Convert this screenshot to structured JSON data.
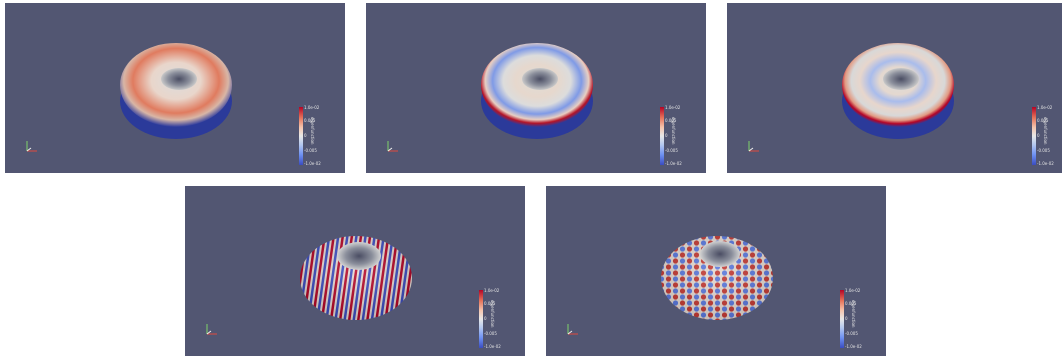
{
  "views": [
    {
      "mode": "low",
      "colorbar": {
        "ticks": [
          "1.0e-02",
          "0.005",
          "0",
          "-0.005",
          "-1.0e-02"
        ],
        "title": "eigenfunction"
      }
    },
    {
      "mode": "ring",
      "colorbar": {
        "ticks": [
          "1.0e-02",
          "0.005",
          "0",
          "-0.005",
          "-1.0e-02"
        ],
        "title": "eigenfunction"
      }
    },
    {
      "mode": "ring2",
      "colorbar": {
        "ticks": [
          "1.0e-02",
          "0.005",
          "0",
          "-0.005",
          "-1.0e-02"
        ],
        "title": "eigenfunction"
      }
    },
    {
      "mode": "stripes",
      "colorbar": {
        "ticks": [
          "1.0e-02",
          "0.005",
          "0",
          "-0.005",
          "-1.0e-02"
        ],
        "title": "eigenfunction"
      }
    },
    {
      "mode": "checker",
      "colorbar": {
        "ticks": [
          "1.0e-02",
          "0.005",
          "0",
          "-0.005",
          "-1.0e-02"
        ],
        "title": "eigenfunction"
      }
    }
  ],
  "colors": {
    "background": "#525672",
    "positive": "#b40426",
    "neutral": "#dcdcdc",
    "negative": "#3b4cc0"
  }
}
